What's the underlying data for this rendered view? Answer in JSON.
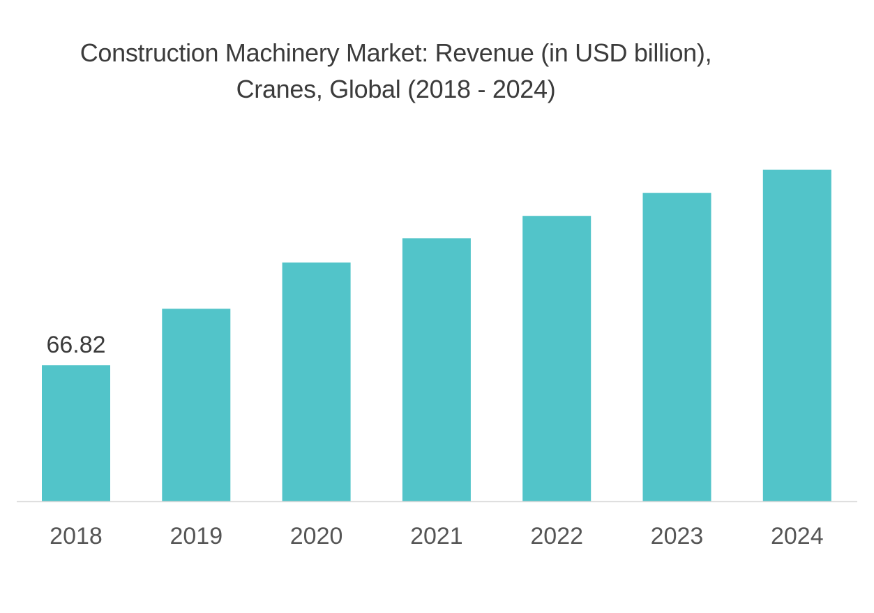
{
  "chart_data": {
    "type": "bar",
    "title": "Construction Machinery Market: Revenue (in USD billion), Cranes, Global (2018 - 2024)",
    "xlabel": "",
    "ylabel": "",
    "categories": [
      "2018",
      "2019",
      "2020",
      "2021",
      "2022",
      "2023",
      "2024"
    ],
    "values": [
      66.82,
      94.6,
      117.3,
      129.2,
      140.2,
      151.5,
      162.9
    ],
    "data_labels": [
      "66.82",
      "",
      "",
      "",
      "",
      "",
      ""
    ],
    "ylim": [
      0,
      165
    ],
    "bar_color": "#52c4c9",
    "axis_color": "#d9d9d9",
    "grid": false,
    "legend": "none"
  }
}
